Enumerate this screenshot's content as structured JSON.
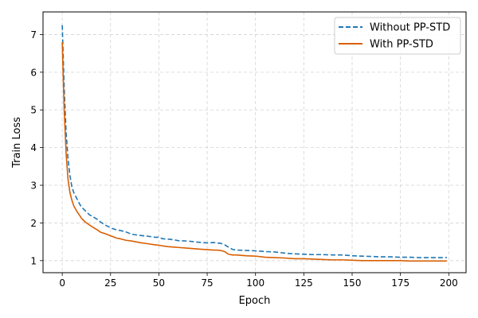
{
  "chart_data": {
    "type": "line",
    "title": "",
    "xlabel": "Epoch",
    "ylabel": "Train Loss",
    "xlim": [
      -9.95,
      208.95
    ],
    "ylim": [
      0.68,
      7.6
    ],
    "xticks": [
      0,
      25,
      50,
      75,
      100,
      125,
      150,
      175,
      200
    ],
    "yticks": [
      1,
      2,
      3,
      4,
      5,
      6,
      7
    ],
    "grid": true,
    "grid_style": "dashed",
    "legend_position": "top-right",
    "series": [
      {
        "name": "Without PP-STD",
        "color": "#1f77b4",
        "line_style": "dashed",
        "x": [
          0,
          1,
          2,
          3,
          4,
          5,
          6,
          7,
          8,
          9,
          10,
          12,
          14,
          16,
          18,
          20,
          22,
          24,
          26,
          28,
          30,
          33,
          36,
          40,
          44,
          48,
          50,
          52,
          55,
          58,
          60,
          65,
          70,
          75,
          78,
          80,
          82,
          84,
          86,
          88,
          90,
          95,
          100,
          105,
          110,
          115,
          120,
          125,
          130,
          135,
          140,
          145,
          150,
          155,
          160,
          165,
          170,
          175,
          180,
          185,
          190,
          195,
          199
        ],
        "y": [
          7.25,
          5.6,
          4.4,
          3.7,
          3.25,
          2.95,
          2.8,
          2.7,
          2.6,
          2.5,
          2.42,
          2.32,
          2.22,
          2.16,
          2.1,
          2.02,
          1.95,
          1.9,
          1.85,
          1.82,
          1.8,
          1.76,
          1.7,
          1.67,
          1.65,
          1.62,
          1.62,
          1.58,
          1.57,
          1.55,
          1.53,
          1.52,
          1.49,
          1.47,
          1.48,
          1.47,
          1.46,
          1.42,
          1.36,
          1.3,
          1.28,
          1.27,
          1.26,
          1.24,
          1.23,
          1.2,
          1.18,
          1.17,
          1.16,
          1.16,
          1.15,
          1.15,
          1.13,
          1.12,
          1.11,
          1.1,
          1.1,
          1.09,
          1.09,
          1.08,
          1.08,
          1.08,
          1.08
        ]
      },
      {
        "name": "With PP-STD",
        "color": "#d95f02",
        "line_style": "solid",
        "x": [
          0,
          1,
          2,
          3,
          4,
          5,
          6,
          7,
          8,
          9,
          10,
          12,
          14,
          16,
          18,
          20,
          22,
          24,
          26,
          28,
          30,
          33,
          36,
          40,
          44,
          48,
          50,
          52,
          55,
          58,
          60,
          65,
          70,
          75,
          78,
          80,
          82,
          84,
          86,
          88,
          90,
          95,
          100,
          105,
          110,
          115,
          120,
          125,
          130,
          135,
          140,
          145,
          150,
          155,
          160,
          165,
          170,
          175,
          180,
          185,
          190,
          195,
          199
        ],
        "y": [
          6.8,
          5.0,
          3.85,
          3.15,
          2.8,
          2.6,
          2.45,
          2.36,
          2.27,
          2.2,
          2.12,
          2.02,
          1.95,
          1.88,
          1.82,
          1.75,
          1.72,
          1.68,
          1.64,
          1.6,
          1.58,
          1.54,
          1.52,
          1.48,
          1.45,
          1.42,
          1.41,
          1.39,
          1.37,
          1.36,
          1.35,
          1.33,
          1.31,
          1.29,
          1.28,
          1.28,
          1.27,
          1.24,
          1.17,
          1.15,
          1.15,
          1.13,
          1.12,
          1.09,
          1.08,
          1.07,
          1.05,
          1.05,
          1.04,
          1.03,
          1.02,
          1.02,
          1.01,
          1.0,
          1.0,
          1.0,
          1.0,
          1.0,
          0.99,
          0.99,
          0.99,
          0.99,
          0.99
        ]
      }
    ]
  }
}
